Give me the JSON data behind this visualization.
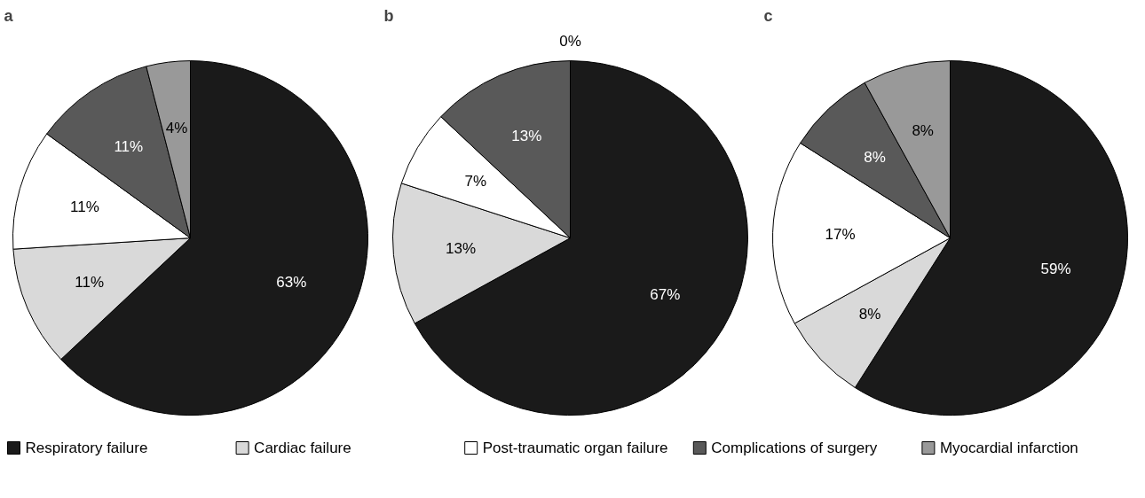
{
  "chart_data": [
    {
      "type": "pie",
      "title": "a",
      "categories": [
        "Respiratory failure",
        "Cardiac failure",
        "Post-traumatic organ failure",
        "Complications of surgery",
        "Myocardial infarction"
      ],
      "values": [
        63,
        11,
        11,
        11,
        4
      ],
      "value_labels": [
        "63%",
        "11%",
        "11%",
        "11%",
        "4%"
      ],
      "colors": [
        "#1a1a1a",
        "#d9d9d9",
        "#ffffff",
        "#595959",
        "#999999"
      ],
      "legend": "bottom"
    },
    {
      "type": "pie",
      "title": "b",
      "categories": [
        null,
        null,
        null,
        null,
        null
      ],
      "values": [
        67,
        13,
        7,
        13,
        0
      ],
      "value_labels": [
        "67%",
        "13%",
        "7%",
        "13%",
        "0%"
      ],
      "colors": [
        "#1a1a1a",
        "#d9d9d9",
        "#ffffff",
        "#595959",
        "#999999"
      ]
    },
    {
      "type": "pie",
      "title": "c",
      "categories": [
        null,
        null,
        null,
        null,
        null
      ],
      "values": [
        59,
        8,
        17,
        8,
        8
      ],
      "value_labels": [
        "59%",
        "8%",
        "17%",
        "8%",
        "8%"
      ],
      "colors": [
        "#1a1a1a",
        "#d9d9d9",
        "#ffffff",
        "#595959",
        "#999999"
      ]
    }
  ]
}
